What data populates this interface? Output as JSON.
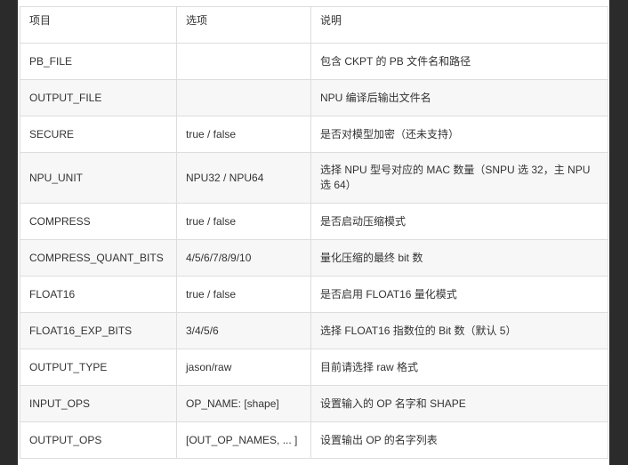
{
  "table": {
    "headers": [
      "项目",
      "选项",
      "说明"
    ],
    "rows": [
      [
        "PB_FILE",
        "",
        "包含 CKPT 的 PB 文件名和路径"
      ],
      [
        "OUTPUT_FILE",
        "",
        "NPU 编译后输出文件名"
      ],
      [
        "SECURE",
        "true / false",
        "是否对模型加密（还未支持）"
      ],
      [
        "NPU_UNIT",
        "NPU32 / NPU64",
        "选择 NPU 型号对应的 MAC 数量（SNPU 选 32，主 NPU 选 64）"
      ],
      [
        "COMPRESS",
        "true / false",
        "是否启动压缩模式"
      ],
      [
        "COMPRESS_QUANT_BITS",
        "4/5/6/7/8/9/10",
        "量化压缩的最终 bit 数"
      ],
      [
        "FLOAT16",
        "true / false",
        "是否启用 FLOAT16 量化模式"
      ],
      [
        "FLOAT16_EXP_BITS",
        "3/4/5/6",
        "选择 FLOAT16 指数位的 Bit 数（默认 5）"
      ],
      [
        "OUTPUT_TYPE",
        "jason/raw",
        "目前请选择 raw 格式"
      ],
      [
        "INPUT_OPS",
        "OP_NAME: [shape]",
        "设置输入的 OP 名字和 SHAPE"
      ],
      [
        "OUTPUT_OPS",
        "[OUT_OP_NAMES, ... ]",
        "设置输出 OP 的名字列表"
      ]
    ]
  }
}
